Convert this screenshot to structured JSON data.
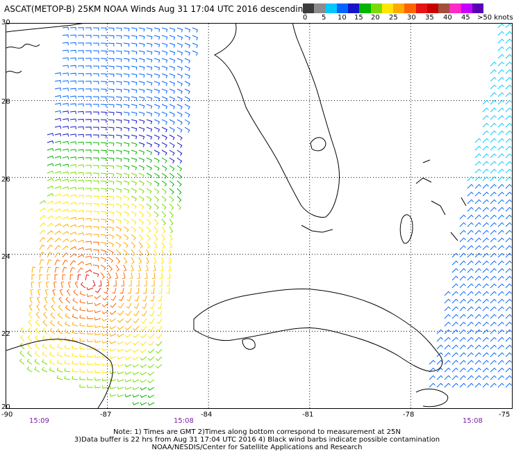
{
  "title": "ASCAT(METOP-B) 25KM NOAA Winds  Aug 31 17:04 UTC 2016 descending",
  "colorbar": {
    "colors": [
      "#3c3c3c",
      "#8c8c8c",
      "#00c8ff",
      "#0064ff",
      "#1414c8",
      "#00b400",
      "#78dc00",
      "#ffe600",
      "#ffaa00",
      "#ff6400",
      "#e61414",
      "#c80000",
      "#a0503c",
      "#ff28c8",
      "#c800ff",
      "#5a00b4"
    ],
    "labels": [
      "0",
      "5",
      "10",
      "15",
      "20",
      "25",
      "30",
      "35",
      "40",
      "45",
      ">50 knots"
    ]
  },
  "lat_labels": [
    "30",
    "28",
    "26",
    "24",
    "22",
    "20"
  ],
  "lon_labels": [
    "-90",
    "-87",
    "-84",
    "-81",
    "-78",
    "-75"
  ],
  "time_labels": [
    "15:09",
    "15:08",
    "15:08"
  ],
  "notes": [
    "Note: 1) Times are GMT 2)Times along bottom correspond to measurement at 25N",
    "3)Data buffer is 22 hrs from Aug 31 17:04 UTC 2016 4) Black wind barbs indicate possible contamination",
    "NOAA/NESDIS/Center for Satellite Applications and Research"
  ],
  "map": {
    "lon_range": [
      -90,
      -75
    ],
    "lat_range": [
      20,
      30
    ],
    "grid_lon": [
      -87,
      -84,
      -81,
      -78
    ],
    "grid_lat": [
      22,
      24,
      26,
      28
    ],
    "storm_center": {
      "lon": -87.5,
      "lat": 23.3
    },
    "swaths": [
      {
        "name": "west-swath",
        "corners": [
          [
            -88.4,
            30.0
          ],
          [
            -84.4,
            30.0
          ],
          [
            -85.5,
            20.0
          ],
          [
            -89.6,
            21.0
          ]
        ]
      },
      {
        "name": "east-swath",
        "corners": [
          [
            -75.4,
            30.0
          ],
          [
            -75.0,
            30.0
          ],
          [
            -75.0,
            20.5
          ],
          [
            -77.6,
            20.5
          ]
        ]
      }
    ]
  }
}
